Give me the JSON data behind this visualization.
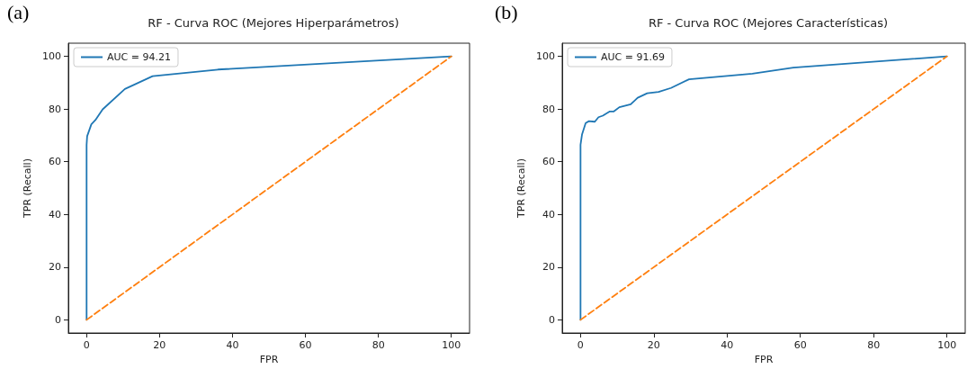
{
  "chart_data": [
    {
      "type": "line",
      "title": "RF - Curva ROC (Mejores Hiperparámetros)",
      "xlabel": "FPR",
      "ylabel": "TPR (Recall)",
      "annotations": [
        "(a)"
      ],
      "xlim": [
        -5,
        105
      ],
      "ylim": [
        -5,
        105
      ],
      "xticks": [
        0,
        20,
        40,
        60,
        80,
        100
      ],
      "yticks": [
        0,
        20,
        40,
        60,
        80,
        100
      ],
      "grid": false,
      "legend": "top left",
      "marker": "none",
      "series": [
        {
          "name": "AUC = 94.21",
          "color": "#1f77b4",
          "line_style": "solid",
          "x": [
            0,
            0,
            0.15,
            1.3,
            2.4,
            4.4,
            10.5,
            18.1,
            36,
            100
          ],
          "values": [
            0,
            66.4,
            69.7,
            74.2,
            75.8,
            79.9,
            87.6,
            92.5,
            95,
            100
          ]
        },
        {
          "color": "#ff7f0e",
          "line_style": "dashed",
          "x": [
            0,
            100
          ],
          "values": [
            0,
            100
          ]
        }
      ]
    },
    {
      "type": "line",
      "title": "RF - Curva ROC (Mejores Características)",
      "xlabel": "FPR",
      "ylabel": "TPR (Recall)",
      "annotations": [
        "(b)"
      ],
      "xlim": [
        -5,
        105
      ],
      "ylim": [
        -5,
        105
      ],
      "xticks": [
        0,
        20,
        40,
        60,
        80,
        100
      ],
      "yticks": [
        0,
        20,
        40,
        60,
        80,
        100
      ],
      "grid": false,
      "legend": "top left",
      "marker": "none",
      "series": [
        {
          "name": "AUC = 91.69",
          "color": "#1f77b4",
          "line_style": "solid",
          "x": [
            0,
            0,
            0.4,
            1.4,
            2.3,
            3.9,
            4.9,
            6.1,
            8,
            9.1,
            10.6,
            13.7,
            15.6,
            18.2,
            21.3,
            24.7,
            29.6,
            46.9,
            58.1,
            100
          ],
          "values": [
            0,
            66.4,
            70.3,
            74.7,
            75.4,
            75.2,
            76.9,
            77.5,
            79.1,
            79.1,
            80.7,
            81.8,
            84.3,
            86,
            86.5,
            88,
            91.3,
            93.4,
            95.7,
            100
          ]
        },
        {
          "color": "#ff7f0e",
          "line_style": "dashed",
          "x": [
            0,
            100
          ],
          "values": [
            0,
            100
          ]
        }
      ]
    }
  ]
}
